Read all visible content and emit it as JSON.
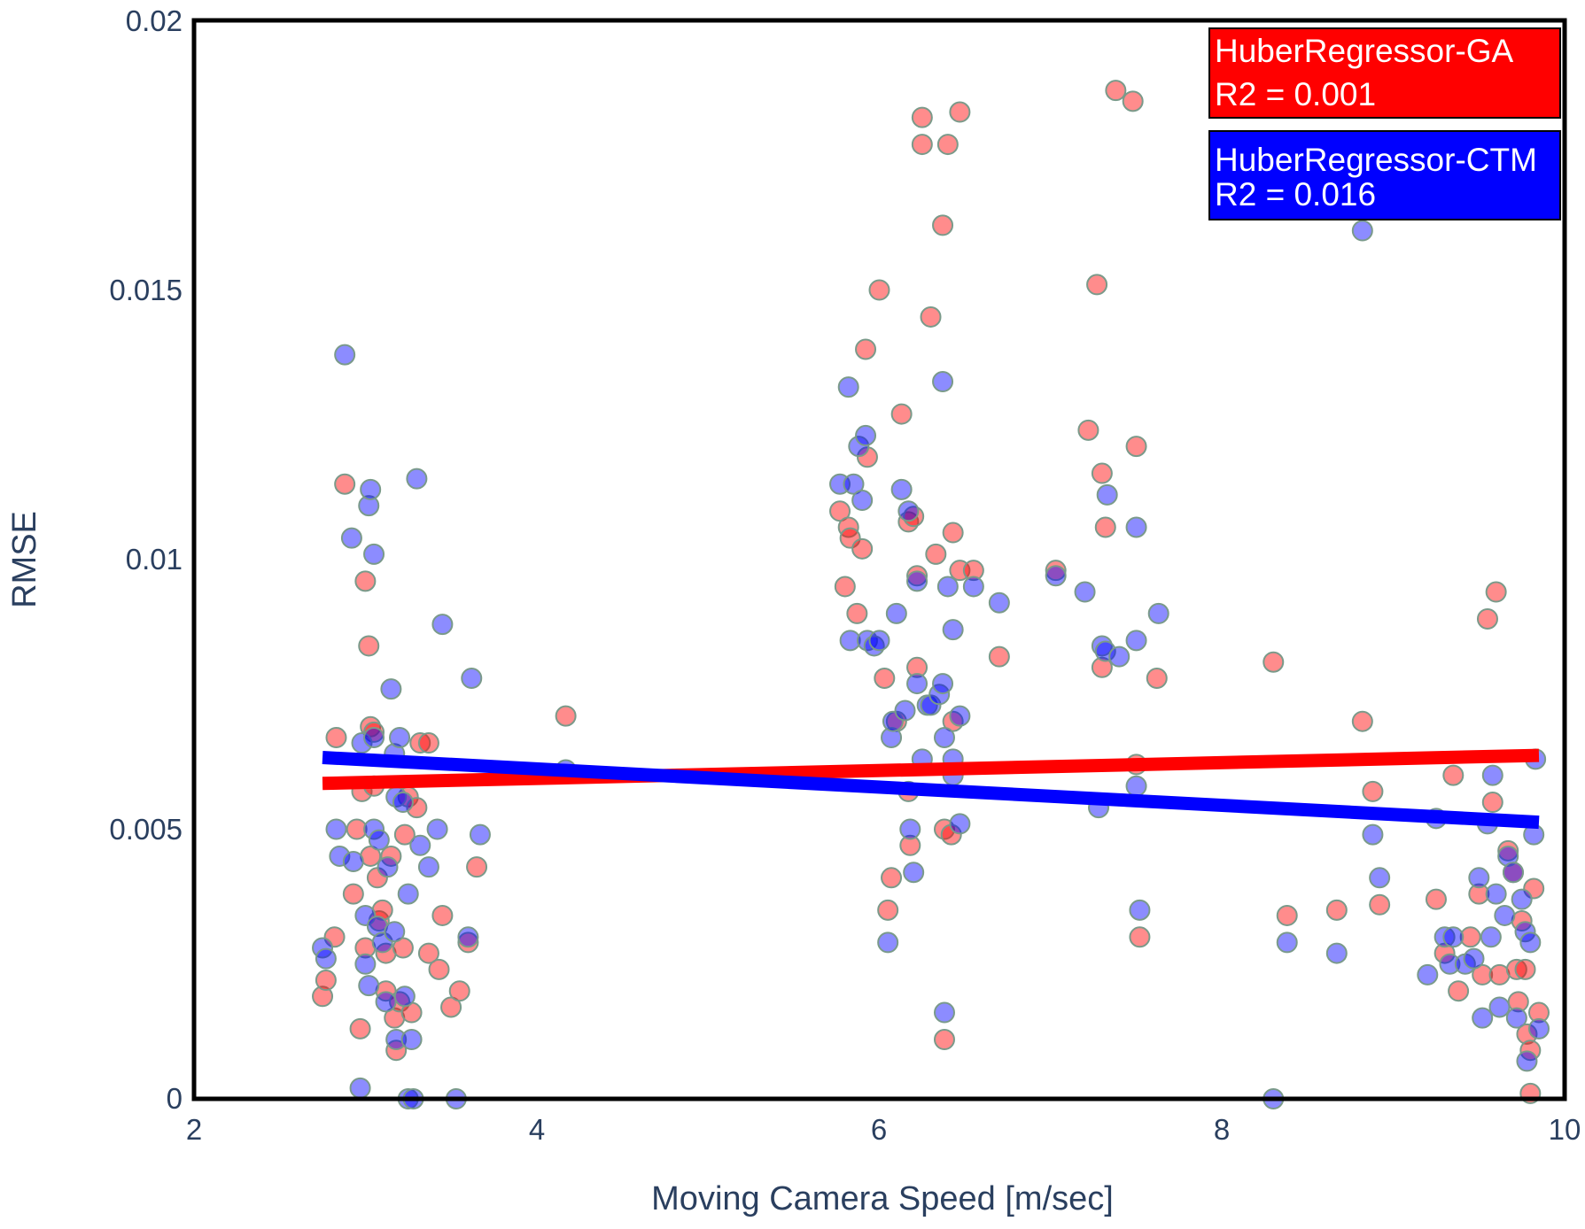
{
  "chart_data": {
    "type": "scatter",
    "title": "",
    "xlabel": "Moving Camera Speed [m/sec]",
    "ylabel": "RMSE",
    "xlim": [
      2,
      10
    ],
    "ylim": [
      0,
      0.02
    ],
    "grid": false,
    "legend_placement": "top-right",
    "x_ticks": [
      "2",
      "4",
      "6",
      "8",
      "10"
    ],
    "y_ticks": [
      "0",
      "0.005",
      "0.01",
      "0.015",
      "0.02"
    ],
    "legend": [
      {
        "name": "HuberRegressor-GA",
        "r2_label": "R2 = 0.001",
        "color": "#ff0000"
      },
      {
        "name": "HuberRegressor-CTM",
        "r2_label": "R2 = 0.016",
        "color": "#0000ff"
      }
    ],
    "marker_stroke": "#7a9a8a",
    "series": [
      {
        "name": "HuberRegressor-GA",
        "color": "#ff0000",
        "regression": {
          "x": [
            2.75,
            9.85
          ],
          "y": [
            0.00585,
            0.00637
          ]
        },
        "points": [
          [
            2.75,
            0.0019
          ],
          [
            2.77,
            0.0022
          ],
          [
            2.82,
            0.003
          ],
          [
            2.83,
            0.0067
          ],
          [
            2.88,
            0.0114
          ],
          [
            2.93,
            0.0038
          ],
          [
            2.95,
            0.005
          ],
          [
            2.97,
            0.0013
          ],
          [
            2.98,
            0.0057
          ],
          [
            3.0,
            0.0028
          ],
          [
            3.0,
            0.0096
          ],
          [
            3.02,
            0.0084
          ],
          [
            3.03,
            0.0069
          ],
          [
            3.05,
            0.0068
          ],
          [
            3.05,
            0.0058
          ],
          [
            3.03,
            0.0045
          ],
          [
            3.07,
            0.0041
          ],
          [
            3.08,
            0.0033
          ],
          [
            3.1,
            0.0035
          ],
          [
            3.12,
            0.0027
          ],
          [
            3.12,
            0.002
          ],
          [
            3.15,
            0.0045
          ],
          [
            3.17,
            0.0015
          ],
          [
            3.18,
            0.0009
          ],
          [
            3.2,
            0.0018
          ],
          [
            3.22,
            0.0028
          ],
          [
            3.23,
            0.0049
          ],
          [
            3.25,
            0.0056
          ],
          [
            3.27,
            0.0016
          ],
          [
            3.3,
            0.0054
          ],
          [
            3.32,
            0.0066
          ],
          [
            3.37,
            0.0066
          ],
          [
            3.37,
            0.0027
          ],
          [
            3.43,
            0.0024
          ],
          [
            3.45,
            0.0034
          ],
          [
            3.5,
            0.0017
          ],
          [
            3.55,
            0.002
          ],
          [
            3.6,
            0.0029
          ],
          [
            3.65,
            0.0043
          ],
          [
            4.17,
            0.0071
          ],
          [
            5.77,
            0.0109
          ],
          [
            5.8,
            0.0095
          ],
          [
            5.82,
            0.0106
          ],
          [
            5.83,
            0.0104
          ],
          [
            5.87,
            0.009
          ],
          [
            5.9,
            0.0102
          ],
          [
            5.92,
            0.0139
          ],
          [
            5.93,
            0.0119
          ],
          [
            6.0,
            0.015
          ],
          [
            6.03,
            0.0078
          ],
          [
            6.05,
            0.0035
          ],
          [
            6.07,
            0.0041
          ],
          [
            6.1,
            0.007
          ],
          [
            6.13,
            0.0127
          ],
          [
            6.17,
            0.0057
          ],
          [
            6.17,
            0.0107
          ],
          [
            6.18,
            0.0047
          ],
          [
            6.2,
            0.0108
          ],
          [
            6.22,
            0.008
          ],
          [
            6.22,
            0.0097
          ],
          [
            6.25,
            0.0177
          ],
          [
            6.25,
            0.0182
          ],
          [
            6.3,
            0.0145
          ],
          [
            6.33,
            0.0101
          ],
          [
            6.37,
            0.0162
          ],
          [
            6.38,
            0.0011
          ],
          [
            6.38,
            0.005
          ],
          [
            6.4,
            0.0177
          ],
          [
            6.42,
            0.0049
          ],
          [
            6.43,
            0.0105
          ],
          [
            6.43,
            0.007
          ],
          [
            6.47,
            0.0183
          ],
          [
            6.47,
            0.0098
          ],
          [
            6.55,
            0.0098
          ],
          [
            6.7,
            0.0082
          ],
          [
            7.03,
            0.0098
          ],
          [
            7.22,
            0.0124
          ],
          [
            7.27,
            0.0151
          ],
          [
            7.3,
            0.0116
          ],
          [
            7.3,
            0.008
          ],
          [
            7.32,
            0.0106
          ],
          [
            7.38,
            0.0187
          ],
          [
            7.48,
            0.0185
          ],
          [
            7.5,
            0.0121
          ],
          [
            7.5,
            0.0062
          ],
          [
            7.52,
            0.003
          ],
          [
            7.62,
            0.0078
          ],
          [
            8.3,
            0.0081
          ],
          [
            8.38,
            0.0034
          ],
          [
            8.67,
            0.0035
          ],
          [
            8.82,
            0.007
          ],
          [
            8.88,
            0.0057
          ],
          [
            8.92,
            0.0036
          ],
          [
            9.25,
            0.0037
          ],
          [
            9.3,
            0.0027
          ],
          [
            9.35,
            0.006
          ],
          [
            9.38,
            0.002
          ],
          [
            9.45,
            0.003
          ],
          [
            9.5,
            0.0038
          ],
          [
            9.52,
            0.0023
          ],
          [
            9.55,
            0.0089
          ],
          [
            9.58,
            0.0055
          ],
          [
            9.6,
            0.0094
          ],
          [
            9.62,
            0.0023
          ],
          [
            9.67,
            0.0046
          ],
          [
            9.7,
            0.0042
          ],
          [
            9.72,
            0.0024
          ],
          [
            9.73,
            0.0018
          ],
          [
            9.75,
            0.0033
          ],
          [
            9.77,
            0.0024
          ],
          [
            9.78,
            0.0012
          ],
          [
            9.8,
            0.0009
          ],
          [
            9.8,
            0.0001
          ],
          [
            9.82,
            0.0039
          ],
          [
            9.85,
            0.0016
          ]
        ]
      },
      {
        "name": "HuberRegressor-CTM",
        "color": "#0000ff",
        "regression": {
          "x": [
            2.75,
            9.85
          ],
          "y": [
            0.00633,
            0.00513
          ]
        },
        "points": [
          [
            2.75,
            0.0028
          ],
          [
            2.77,
            0.0026
          ],
          [
            2.83,
            0.005
          ],
          [
            2.85,
            0.0045
          ],
          [
            2.88,
            0.0138
          ],
          [
            2.92,
            0.0104
          ],
          [
            2.93,
            0.0044
          ],
          [
            2.97,
            0.0002
          ],
          [
            2.98,
            0.0066
          ],
          [
            3.0,
            0.0034
          ],
          [
            3.0,
            0.0025
          ],
          [
            3.02,
            0.0021
          ],
          [
            3.02,
            0.011
          ],
          [
            3.03,
            0.0113
          ],
          [
            3.05,
            0.0101
          ],
          [
            3.05,
            0.0067
          ],
          [
            3.05,
            0.005
          ],
          [
            3.07,
            0.0032
          ],
          [
            3.08,
            0.0048
          ],
          [
            3.1,
            0.0029
          ],
          [
            3.12,
            0.0018
          ],
          [
            3.13,
            0.0043
          ],
          [
            3.15,
            0.0076
          ],
          [
            3.17,
            0.0031
          ],
          [
            3.17,
            0.0064
          ],
          [
            3.18,
            0.0056
          ],
          [
            3.18,
            0.0011
          ],
          [
            3.2,
            0.0067
          ],
          [
            3.22,
            0.0055
          ],
          [
            3.23,
            0.0019
          ],
          [
            3.25,
            0.0
          ],
          [
            3.25,
            0.0038
          ],
          [
            3.27,
            0.0011
          ],
          [
            3.28,
            0.0
          ],
          [
            3.3,
            0.0115
          ],
          [
            3.32,
            0.0047
          ],
          [
            3.37,
            0.0043
          ],
          [
            3.42,
            0.005
          ],
          [
            3.45,
            0.0088
          ],
          [
            3.53,
            0.0
          ],
          [
            3.6,
            0.003
          ],
          [
            3.62,
            0.0078
          ],
          [
            3.67,
            0.0049
          ],
          [
            4.17,
            0.0061
          ],
          [
            5.77,
            0.0114
          ],
          [
            5.82,
            0.0132
          ],
          [
            5.83,
            0.0085
          ],
          [
            5.85,
            0.0114
          ],
          [
            5.88,
            0.0121
          ],
          [
            5.9,
            0.0111
          ],
          [
            5.92,
            0.0123
          ],
          [
            5.93,
            0.0085
          ],
          [
            5.97,
            0.0084
          ],
          [
            6.0,
            0.0085
          ],
          [
            6.05,
            0.0029
          ],
          [
            6.07,
            0.0067
          ],
          [
            6.08,
            0.007
          ],
          [
            6.1,
            0.009
          ],
          [
            6.13,
            0.0113
          ],
          [
            6.15,
            0.0072
          ],
          [
            6.17,
            0.0109
          ],
          [
            6.18,
            0.005
          ],
          [
            6.2,
            0.0042
          ],
          [
            6.22,
            0.0077
          ],
          [
            6.22,
            0.0096
          ],
          [
            6.25,
            0.0063
          ],
          [
            6.28,
            0.0073
          ],
          [
            6.3,
            0.0073
          ],
          [
            6.35,
            0.0075
          ],
          [
            6.37,
            0.0077
          ],
          [
            6.37,
            0.0133
          ],
          [
            6.38,
            0.0016
          ],
          [
            6.38,
            0.0067
          ],
          [
            6.4,
            0.0095
          ],
          [
            6.43,
            0.0087
          ],
          [
            6.43,
            0.006
          ],
          [
            6.43,
            0.0063
          ],
          [
            6.47,
            0.0071
          ],
          [
            6.47,
            0.0051
          ],
          [
            6.55,
            0.0095
          ],
          [
            6.7,
            0.0092
          ],
          [
            7.03,
            0.0097
          ],
          [
            7.2,
            0.0094
          ],
          [
            7.28,
            0.0054
          ],
          [
            7.3,
            0.0084
          ],
          [
            7.32,
            0.0083
          ],
          [
            7.33,
            0.0112
          ],
          [
            7.4,
            0.0082
          ],
          [
            7.5,
            0.0085
          ],
          [
            7.5,
            0.0106
          ],
          [
            7.5,
            0.0058
          ],
          [
            7.52,
            0.0035
          ],
          [
            7.63,
            0.009
          ],
          [
            8.3,
            0.0
          ],
          [
            8.38,
            0.0029
          ],
          [
            8.67,
            0.0027
          ],
          [
            8.82,
            0.0161
          ],
          [
            8.88,
            0.0049
          ],
          [
            8.92,
            0.0041
          ],
          [
            9.2,
            0.0023
          ],
          [
            9.25,
            0.0052
          ],
          [
            9.3,
            0.003
          ],
          [
            9.33,
            0.0025
          ],
          [
            9.35,
            0.003
          ],
          [
            9.42,
            0.0025
          ],
          [
            9.47,
            0.0026
          ],
          [
            9.5,
            0.0041
          ],
          [
            9.52,
            0.0015
          ],
          [
            9.55,
            0.0051
          ],
          [
            9.57,
            0.003
          ],
          [
            9.58,
            0.006
          ],
          [
            9.6,
            0.0038
          ],
          [
            9.62,
            0.0017
          ],
          [
            9.65,
            0.0034
          ],
          [
            9.67,
            0.0045
          ],
          [
            9.7,
            0.0042
          ],
          [
            9.72,
            0.0015
          ],
          [
            9.75,
            0.0037
          ],
          [
            9.77,
            0.0031
          ],
          [
            9.78,
            0.0007
          ],
          [
            9.8,
            0.0029
          ],
          [
            9.82,
            0.0049
          ],
          [
            9.83,
            0.0063
          ],
          [
            9.85,
            0.0013
          ]
        ]
      }
    ]
  }
}
